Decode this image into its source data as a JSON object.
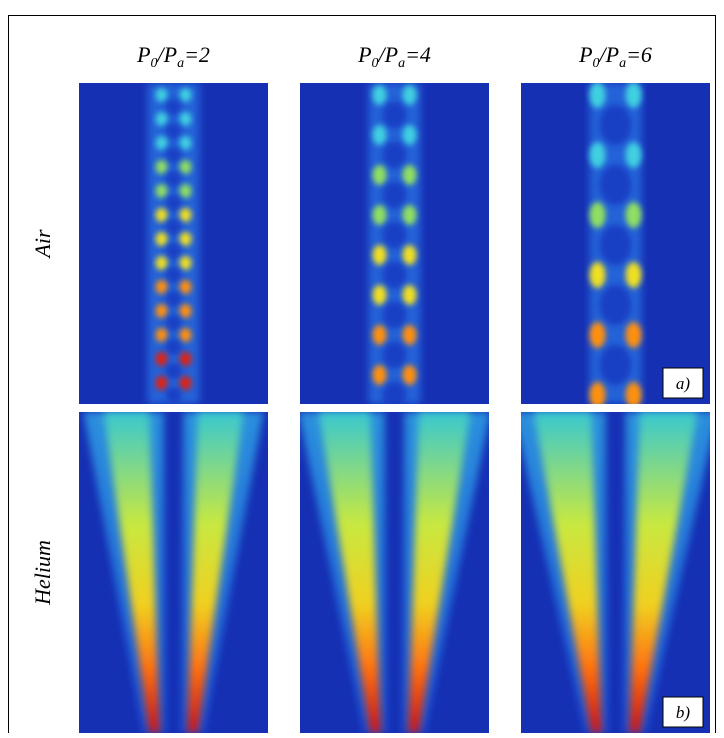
{
  "columns": [
    {
      "base": "P",
      "sub1": "0",
      "mid": "/P",
      "sub2": "a",
      "tail": "=2"
    },
    {
      "base": "P",
      "sub1": "0",
      "mid": "/P",
      "sub2": "a",
      "tail": "=4"
    },
    {
      "base": "P",
      "sub1": "0",
      "mid": "/P",
      "sub2": "a",
      "tail": "=6"
    }
  ],
  "rows": [
    {
      "label": "Air",
      "panel": "a)"
    },
    {
      "label": "Helium",
      "panel": "b)"
    }
  ]
}
